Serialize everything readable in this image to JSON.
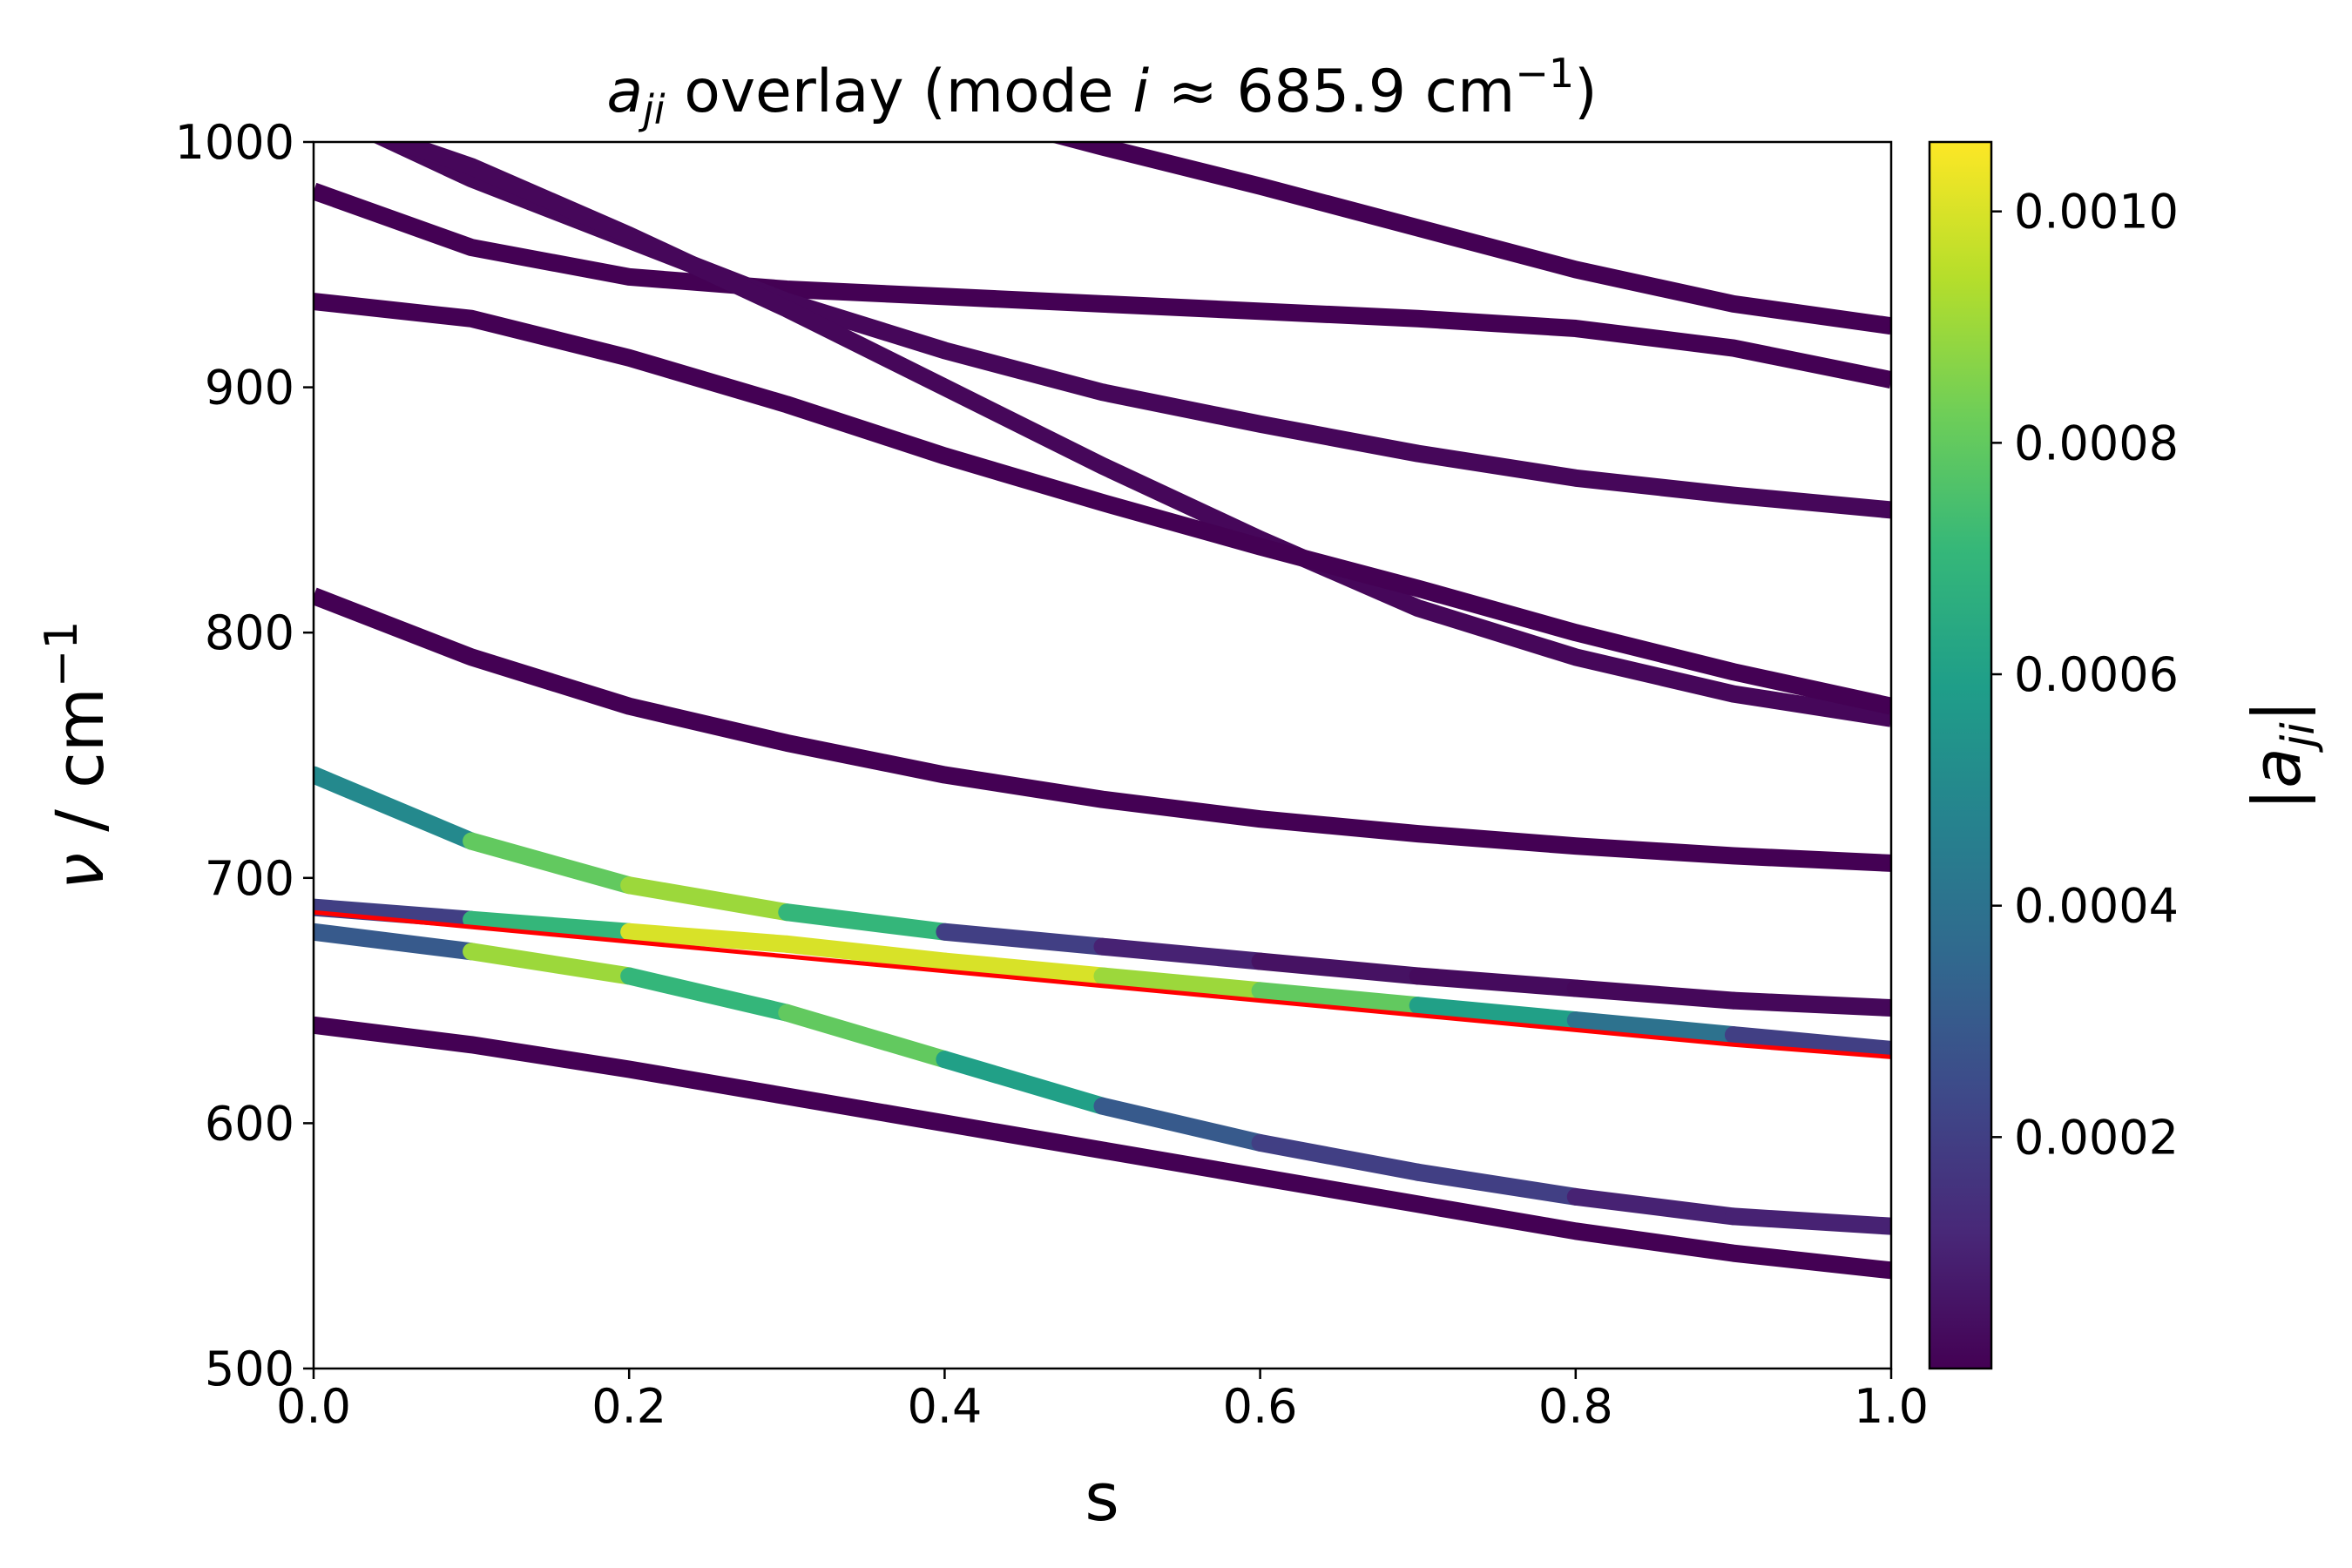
{
  "chart_data": {
    "type": "line",
    "title": [
      "a",
      "ji",
      " overlay (mode ",
      "i",
      " ≈ 685.9 cm",
      "−1",
      ")"
    ],
    "xlabel": "s",
    "ylabel": [
      "ν",
      " / cm",
      "−1"
    ],
    "colorbar_label": [
      "|",
      "a",
      "ji",
      "|"
    ],
    "x": [
      0.0,
      0.1,
      0.2,
      0.3,
      0.4,
      0.5,
      0.6,
      0.7,
      0.8,
      0.9,
      1.0
    ],
    "xlim": [
      0.0,
      1.0
    ],
    "xticks": [
      {
        "value": 0.0,
        "label": "0.0"
      },
      0.2,
      0.4,
      0.6,
      0.8,
      {
        "value": 1.0,
        "label": "1.0"
      }
    ],
    "ylim": [
      500,
      1000
    ],
    "yticks": [
      500,
      600,
      700,
      800,
      900,
      1000
    ],
    "clim": [
      0,
      0.00106
    ],
    "cticks": [
      0.0002,
      0.0004,
      0.0006,
      0.0008,
      {
        "value": 0.001,
        "label": "0.0010"
      }
    ],
    "colormap": "viridis",
    "series": [
      {
        "color": "#440154",
        "values": [
          null,
          null,
          null,
          null,
          1015,
          998,
          982,
          965,
          948,
          934,
          925
        ]
      },
      {
        "color": "#440154",
        "values": [
          980,
          957,
          945,
          940,
          937,
          934,
          931,
          928,
          924,
          916,
          903
        ]
      },
      {
        "color": "#46075a",
        "values": [
          1015,
          985,
          960,
          935,
          915,
          898,
          885,
          873,
          863,
          856,
          850
        ]
      },
      {
        "color": "#46075a",
        "values": [
          1012,
          990,
          962,
          932,
          900,
          868,
          838,
          810,
          790,
          775,
          765
        ]
      },
      {
        "color": "#440154",
        "values": [
          935,
          928,
          912,
          893,
          872,
          853,
          835,
          818,
          800,
          784,
          770
        ]
      },
      {
        "color": "#440154",
        "values": [
          815,
          790,
          770,
          755,
          742,
          732,
          724,
          718,
          713,
          709,
          706
        ]
      },
      {
        "values": [
          742,
          715,
          697,
          686,
          678,
          672,
          666,
          660,
          655,
          650,
          647
        ],
        "magnitudes": [
          0.0005,
          0.0008,
          0.0009,
          0.0007,
          0.0002,
          0.0001,
          5e-05,
          3e-05,
          2e-05,
          2e-05,
          1e-05
        ]
      },
      {
        "values": [
          688,
          683,
          678,
          673,
          666,
          660,
          654,
          648,
          642,
          636,
          630
        ],
        "magnitudes": [
          0.0002,
          0.0007,
          0.001,
          0.001,
          0.001,
          0.0009,
          0.0008,
          0.0006,
          0.0004,
          0.0002,
          0.0001
        ]
      },
      {
        "values": [
          678,
          670,
          660,
          645,
          626,
          607,
          592,
          580,
          570,
          562,
          558
        ],
        "magnitudes": [
          0.0003,
          0.0009,
          0.0007,
          0.0008,
          0.0006,
          0.0003,
          0.0002,
          0.0002,
          0.0001,
          0.0001,
          0.0001
        ]
      },
      {
        "color": "#440154",
        "values": [
          640,
          632,
          622,
          611,
          600,
          589,
          578,
          567,
          556,
          547,
          540
        ]
      },
      {
        "color": "#ff0000",
        "thin": true,
        "values": [
          686,
          680,
          674,
          668,
          662,
          656,
          650,
          644,
          638,
          632,
          627
        ]
      }
    ]
  }
}
